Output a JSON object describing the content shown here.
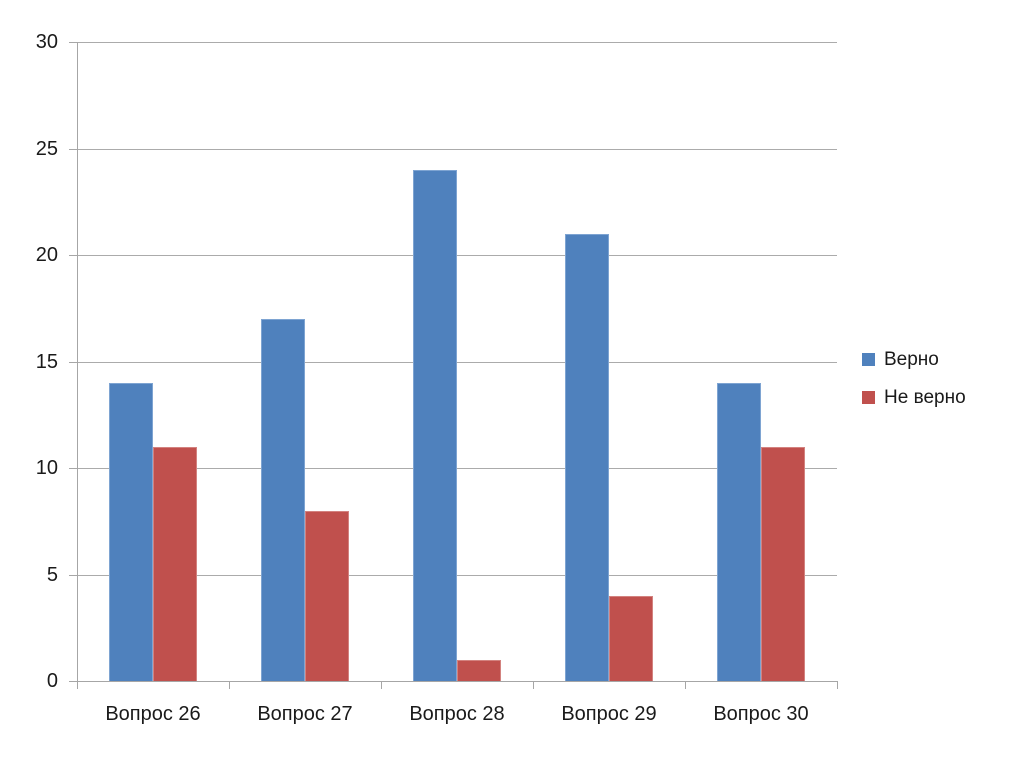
{
  "chart_data": {
    "type": "bar",
    "title": "",
    "xlabel": "",
    "ylabel": "",
    "categories": [
      "Вопрос 26",
      "Вопрос 27",
      "Вопрос 28",
      "Вопрос 29",
      "Вопрос 30"
    ],
    "series": [
      {
        "name": "Верно",
        "color": "#4F81BD",
        "border_color": "#7EA4D2",
        "values": [
          14,
          17,
          24,
          21,
          14
        ]
      },
      {
        "name": "Не верно",
        "color": "#C0504D",
        "border_color": "#D3827F",
        "values": [
          11,
          8,
          1,
          4,
          11
        ]
      }
    ],
    "ylim": [
      0,
      30
    ],
    "ytick_step": 5,
    "yticks": [
      0,
      5,
      10,
      15,
      20,
      25,
      30
    ],
    "grid": true,
    "legend_position": "right",
    "colors": {
      "axis": "#A6A6A6",
      "gridline": "#ABABAB",
      "text": "#1A1A1A",
      "background": "#FFFFFF"
    }
  }
}
